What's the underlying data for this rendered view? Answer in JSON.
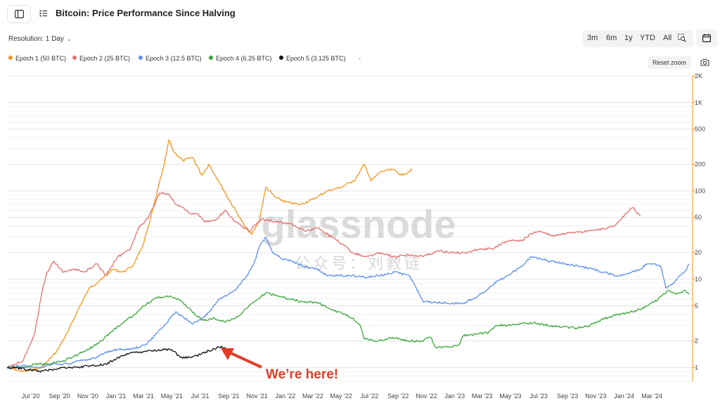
{
  "header": {
    "title": "Bitcoin: Price Performance Since Halving",
    "sidebar_toggle_icon": "sidebar-icon",
    "list_icon": "list-icon"
  },
  "controls": {
    "resolution_label": "Resolution: 1 Day",
    "ranges": [
      "3m",
      "6m",
      "1y",
      "YTD",
      "All"
    ],
    "zoom_select_icon": "zoom-select-icon",
    "calendar_icon": "calendar-icon",
    "reset_zoom": "Reset zoom",
    "camera_icon": "camera-icon"
  },
  "watermark": {
    "brand": "glassnode",
    "sub": "公众号：刘教链"
  },
  "annotation": {
    "text": "We’re here!",
    "color": "#e23d28"
  },
  "chart_data": {
    "type": "line",
    "title": "Bitcoin: Price Performance Since Halving",
    "y_scale": "log",
    "ylim": [
      0.7,
      2000
    ],
    "y_ticks": [
      1,
      2,
      5,
      10,
      20,
      50,
      100,
      200,
      500,
      1000,
      2000
    ],
    "y_tick_labels": [
      "1",
      "2",
      "5",
      "10",
      "20",
      "50",
      "100",
      "200",
      "500",
      "1K",
      "2K"
    ],
    "x_range": [
      "2020-05-11",
      "2024-05-20"
    ],
    "x_ticks": [
      "2020-07-01",
      "2020-09-01",
      "2020-11-01",
      "2021-01-01",
      "2021-03-01",
      "2021-05-01",
      "2021-07-01",
      "2021-09-01",
      "2021-11-01",
      "2022-01-01",
      "2022-03-01",
      "2022-05-01",
      "2022-07-01",
      "2022-09-01",
      "2022-11-01",
      "2023-01-01",
      "2023-03-01",
      "2023-05-01",
      "2023-07-01",
      "2023-09-01",
      "2023-11-01",
      "2024-01-01",
      "2024-03-01"
    ],
    "x_tick_labels": [
      "Jul '20",
      "Sep '20",
      "Nov '20",
      "Jan '21",
      "Mar '21",
      "May '21",
      "Jul '21",
      "Sep '21",
      "Nov '21",
      "Jan '22",
      "Mar '22",
      "May '22",
      "Jul '22",
      "Sep '22",
      "Nov '22",
      "Jan '23",
      "Mar '23",
      "May '23",
      "Jul '23",
      "Sep '23",
      "Nov '23",
      "Jan '24",
      "Mar '24"
    ],
    "legend_position": "top-left",
    "grid": true,
    "series": [
      {
        "name": "Epoch 1 (50 BTC)",
        "color": "#f7931a",
        "points": [
          [
            "2020-05-11",
            1.0
          ],
          [
            "2020-06-15",
            0.9
          ],
          [
            "2020-07-25",
            1.0
          ],
          [
            "2020-08-25",
            1.5
          ],
          [
            "2020-09-20",
            2.6
          ],
          [
            "2020-10-15",
            5.0
          ],
          [
            "2020-11-05",
            8.0
          ],
          [
            "2020-12-01",
            10
          ],
          [
            "2020-12-25",
            13
          ],
          [
            "2021-01-15",
            12
          ],
          [
            "2021-02-05",
            14
          ],
          [
            "2021-02-25",
            22
          ],
          [
            "2021-03-15",
            45
          ],
          [
            "2021-03-31",
            100
          ],
          [
            "2021-04-15",
            200
          ],
          [
            "2021-04-25",
            380
          ],
          [
            "2021-05-05",
            280
          ],
          [
            "2021-05-25",
            220
          ],
          [
            "2021-06-15",
            240
          ],
          [
            "2021-07-05",
            150
          ],
          [
            "2021-07-20",
            200
          ],
          [
            "2021-08-10",
            130
          ],
          [
            "2021-09-01",
            80
          ],
          [
            "2021-09-20",
            55
          ],
          [
            "2021-10-05",
            40
          ],
          [
            "2021-10-20",
            32
          ],
          [
            "2021-11-05",
            45
          ],
          [
            "2021-11-20",
            110
          ],
          [
            "2021-12-10",
            85
          ],
          [
            "2022-01-01",
            75
          ],
          [
            "2022-02-01",
            70
          ],
          [
            "2022-03-01",
            80
          ],
          [
            "2022-04-01",
            100
          ],
          [
            "2022-05-01",
            110
          ],
          [
            "2022-06-01",
            135
          ],
          [
            "2022-06-20",
            200
          ],
          [
            "2022-07-05",
            130
          ],
          [
            "2022-07-25",
            165
          ],
          [
            "2022-08-20",
            175
          ],
          [
            "2022-09-10",
            150
          ],
          [
            "2022-10-01",
            175
          ]
        ]
      },
      {
        "name": "Epoch 2 (25 BTC)",
        "color": "#e86e6e",
        "points": [
          [
            "2020-05-11",
            1.0
          ],
          [
            "2020-06-15",
            1.2
          ],
          [
            "2020-07-10",
            2.5
          ],
          [
            "2020-07-25",
            7.0
          ],
          [
            "2020-08-05",
            12
          ],
          [
            "2020-08-20",
            16
          ],
          [
            "2020-09-10",
            12
          ],
          [
            "2020-10-01",
            13
          ],
          [
            "2020-10-25",
            12
          ],
          [
            "2020-11-20",
            15
          ],
          [
            "2020-12-10",
            11
          ],
          [
            "2021-01-05",
            18
          ],
          [
            "2021-02-01",
            22
          ],
          [
            "2021-02-20",
            40
          ],
          [
            "2021-03-10",
            48
          ],
          [
            "2021-04-05",
            95
          ],
          [
            "2021-04-25",
            92
          ],
          [
            "2021-05-10",
            70
          ],
          [
            "2021-05-25",
            65
          ],
          [
            "2021-06-10",
            55
          ],
          [
            "2021-06-25",
            55
          ],
          [
            "2021-07-10",
            45
          ],
          [
            "2021-08-01",
            46
          ],
          [
            "2021-08-25",
            60
          ],
          [
            "2021-09-15",
            45
          ],
          [
            "2021-10-15",
            35
          ],
          [
            "2021-11-10",
            48
          ],
          [
            "2021-12-10",
            45
          ],
          [
            "2022-01-15",
            42
          ],
          [
            "2022-02-15",
            35
          ],
          [
            "2022-03-15",
            38
          ],
          [
            "2022-04-10",
            30
          ],
          [
            "2022-05-05",
            25
          ],
          [
            "2022-05-25",
            20
          ],
          [
            "2022-06-25",
            18
          ],
          [
            "2022-07-25",
            20
          ],
          [
            "2022-08-25",
            18
          ],
          [
            "2022-09-25",
            19
          ],
          [
            "2022-10-25",
            18
          ],
          [
            "2022-11-25",
            21
          ],
          [
            "2022-12-25",
            20
          ],
          [
            "2023-01-25",
            20
          ],
          [
            "2023-02-25",
            22
          ],
          [
            "2023-03-25",
            22
          ],
          [
            "2023-04-15",
            26
          ],
          [
            "2023-05-05",
            28
          ],
          [
            "2023-05-25",
            27
          ],
          [
            "2023-06-15",
            33
          ],
          [
            "2023-07-05",
            35
          ],
          [
            "2023-08-01",
            31
          ],
          [
            "2023-08-25",
            33
          ],
          [
            "2023-09-25",
            34
          ],
          [
            "2023-10-25",
            36
          ],
          [
            "2023-11-20",
            37
          ],
          [
            "2023-12-15",
            42
          ],
          [
            "2024-01-05",
            56
          ],
          [
            "2024-01-20",
            65
          ],
          [
            "2024-02-05",
            52
          ]
        ]
      },
      {
        "name": "Epoch 3 (12.5 BTC)",
        "color": "#5b8def",
        "points": [
          [
            "2020-05-11",
            1.0
          ],
          [
            "2020-06-15",
            1.05
          ],
          [
            "2020-07-20",
            1.0
          ],
          [
            "2020-08-20",
            1.1
          ],
          [
            "2020-09-20",
            1.1
          ],
          [
            "2020-10-20",
            1.2
          ],
          [
            "2020-11-20",
            1.3
          ],
          [
            "2020-12-10",
            1.5
          ],
          [
            "2021-01-05",
            1.6
          ],
          [
            "2021-02-01",
            1.6
          ],
          [
            "2021-02-20",
            1.7
          ],
          [
            "2021-03-10",
            1.9
          ],
          [
            "2021-04-01",
            2.5
          ],
          [
            "2021-04-20",
            3.2
          ],
          [
            "2021-05-10",
            4.3
          ],
          [
            "2021-05-25",
            3.8
          ],
          [
            "2021-06-15",
            3.1
          ],
          [
            "2021-07-05",
            3.6
          ],
          [
            "2021-07-25",
            4.5
          ],
          [
            "2021-08-10",
            6.0
          ],
          [
            "2021-08-25",
            6.5
          ],
          [
            "2021-09-15",
            7.5
          ],
          [
            "2021-10-10",
            11
          ],
          [
            "2021-10-25",
            15
          ],
          [
            "2021-11-08",
            25
          ],
          [
            "2021-11-20",
            30
          ],
          [
            "2021-12-05",
            20
          ],
          [
            "2021-12-25",
            17
          ],
          [
            "2022-01-15",
            16
          ],
          [
            "2022-02-10",
            14
          ],
          [
            "2022-03-10",
            13
          ],
          [
            "2022-04-01",
            11
          ],
          [
            "2022-04-25",
            11
          ],
          [
            "2022-05-25",
            11
          ],
          [
            "2022-06-25",
            10.5
          ],
          [
            "2022-07-25",
            11
          ],
          [
            "2022-08-25",
            12
          ],
          [
            "2022-09-25",
            11
          ],
          [
            "2022-10-10",
            8
          ],
          [
            "2022-10-25",
            5.5
          ],
          [
            "2022-11-20",
            5.5
          ],
          [
            "2022-12-20",
            5.3
          ],
          [
            "2023-01-20",
            5.4
          ],
          [
            "2023-02-10",
            6.0
          ],
          [
            "2023-03-10",
            7.5
          ],
          [
            "2023-04-01",
            9.5
          ],
          [
            "2023-04-25",
            11
          ],
          [
            "2023-05-25",
            14
          ],
          [
            "2023-06-15",
            18
          ],
          [
            "2023-07-05",
            17
          ],
          [
            "2023-07-25",
            16
          ],
          [
            "2023-08-25",
            15
          ],
          [
            "2023-09-25",
            14
          ],
          [
            "2023-10-25",
            13
          ],
          [
            "2023-11-20",
            12
          ],
          [
            "2023-12-15",
            11
          ],
          [
            "2024-01-10",
            11.5
          ],
          [
            "2024-02-05",
            13
          ],
          [
            "2024-02-20",
            15
          ],
          [
            "2024-03-05",
            15
          ],
          [
            "2024-03-20",
            14
          ],
          [
            "2024-03-31",
            8
          ],
          [
            "2024-04-15",
            9
          ],
          [
            "2024-05-01",
            11
          ],
          [
            "2024-05-15",
            13
          ],
          [
            "2024-05-20",
            15
          ]
        ]
      },
      {
        "name": "Epoch 4 (6.25 BTC)",
        "color": "#3aa63c",
        "points": [
          [
            "2020-05-11",
            1.0
          ],
          [
            "2020-06-15",
            1.0
          ],
          [
            "2020-07-10",
            1.1
          ],
          [
            "2020-08-10",
            1.1
          ],
          [
            "2020-09-10",
            1.2
          ],
          [
            "2020-10-10",
            1.4
          ],
          [
            "2020-11-01",
            1.6
          ],
          [
            "2020-11-25",
            1.9
          ],
          [
            "2020-12-20",
            2.5
          ],
          [
            "2021-01-15",
            3.2
          ],
          [
            "2021-02-10",
            4.0
          ],
          [
            "2021-03-01",
            5.0
          ],
          [
            "2021-03-25",
            6.0
          ],
          [
            "2021-04-20",
            6.5
          ],
          [
            "2021-05-15",
            6.0
          ],
          [
            "2021-06-01",
            5.0
          ],
          [
            "2021-06-20",
            4.0
          ],
          [
            "2021-07-10",
            3.4
          ],
          [
            "2021-08-01",
            3.6
          ],
          [
            "2021-08-25",
            3.3
          ],
          [
            "2021-09-15",
            3.6
          ],
          [
            "2021-10-05",
            4.5
          ],
          [
            "2021-10-25",
            5.5
          ],
          [
            "2021-11-20",
            7.0
          ],
          [
            "2021-12-15",
            6.5
          ],
          [
            "2022-01-10",
            6.0
          ],
          [
            "2022-02-10",
            5.5
          ],
          [
            "2022-03-10",
            5.5
          ],
          [
            "2022-04-10",
            4.5
          ],
          [
            "2022-05-10",
            4.0
          ],
          [
            "2022-05-25",
            3.6
          ],
          [
            "2022-06-10",
            3.1
          ],
          [
            "2022-06-20",
            2.1
          ],
          [
            "2022-07-20",
            2.0
          ],
          [
            "2022-08-20",
            2.2
          ],
          [
            "2022-09-20",
            2.0
          ],
          [
            "2022-10-20",
            2.0
          ],
          [
            "2022-11-10",
            2.2
          ],
          [
            "2022-11-20",
            1.7
          ],
          [
            "2022-12-20",
            1.7
          ],
          [
            "2023-01-10",
            1.8
          ],
          [
            "2023-01-20",
            2.3
          ],
          [
            "2023-02-20",
            2.4
          ],
          [
            "2023-03-15",
            2.5
          ],
          [
            "2023-04-01",
            3.0
          ],
          [
            "2023-05-01",
            3.0
          ],
          [
            "2023-06-01",
            3.2
          ],
          [
            "2023-06-20",
            3.2
          ],
          [
            "2023-07-20",
            3.0
          ],
          [
            "2023-08-20",
            2.9
          ],
          [
            "2023-09-20",
            2.8
          ],
          [
            "2023-10-20",
            3.0
          ],
          [
            "2023-11-20",
            3.6
          ],
          [
            "2023-12-20",
            4.0
          ],
          [
            "2024-01-20",
            4.3
          ],
          [
            "2024-02-20",
            5.0
          ],
          [
            "2024-03-15",
            6.0
          ],
          [
            "2024-04-05",
            7.5
          ],
          [
            "2024-04-25",
            6.8
          ],
          [
            "2024-05-10",
            7.5
          ],
          [
            "2024-05-20",
            6.8
          ]
        ]
      },
      {
        "name": "Epoch 5 (3.125 BTC)",
        "color": "#111111",
        "points": [
          [
            "2020-05-11",
            1.0
          ],
          [
            "2020-06-01",
            1.0
          ],
          [
            "2020-06-25",
            0.95
          ],
          [
            "2020-07-20",
            0.9
          ],
          [
            "2020-08-15",
            0.95
          ],
          [
            "2020-09-10",
            1.0
          ],
          [
            "2020-10-10",
            1.0
          ],
          [
            "2020-11-01",
            1.05
          ],
          [
            "2020-11-20",
            1.05
          ],
          [
            "2020-12-10",
            1.1
          ],
          [
            "2021-01-01",
            1.25
          ],
          [
            "2021-01-20",
            1.4
          ],
          [
            "2021-02-10",
            1.5
          ],
          [
            "2021-03-01",
            1.5
          ],
          [
            "2021-03-20",
            1.55
          ],
          [
            "2021-04-10",
            1.6
          ],
          [
            "2021-05-01",
            1.6
          ],
          [
            "2021-05-20",
            1.3
          ],
          [
            "2021-06-10",
            1.3
          ],
          [
            "2021-07-01",
            1.4
          ],
          [
            "2021-07-20",
            1.55
          ],
          [
            "2021-08-10",
            1.7
          ],
          [
            "2021-08-25",
            1.7
          ]
        ]
      }
    ]
  }
}
